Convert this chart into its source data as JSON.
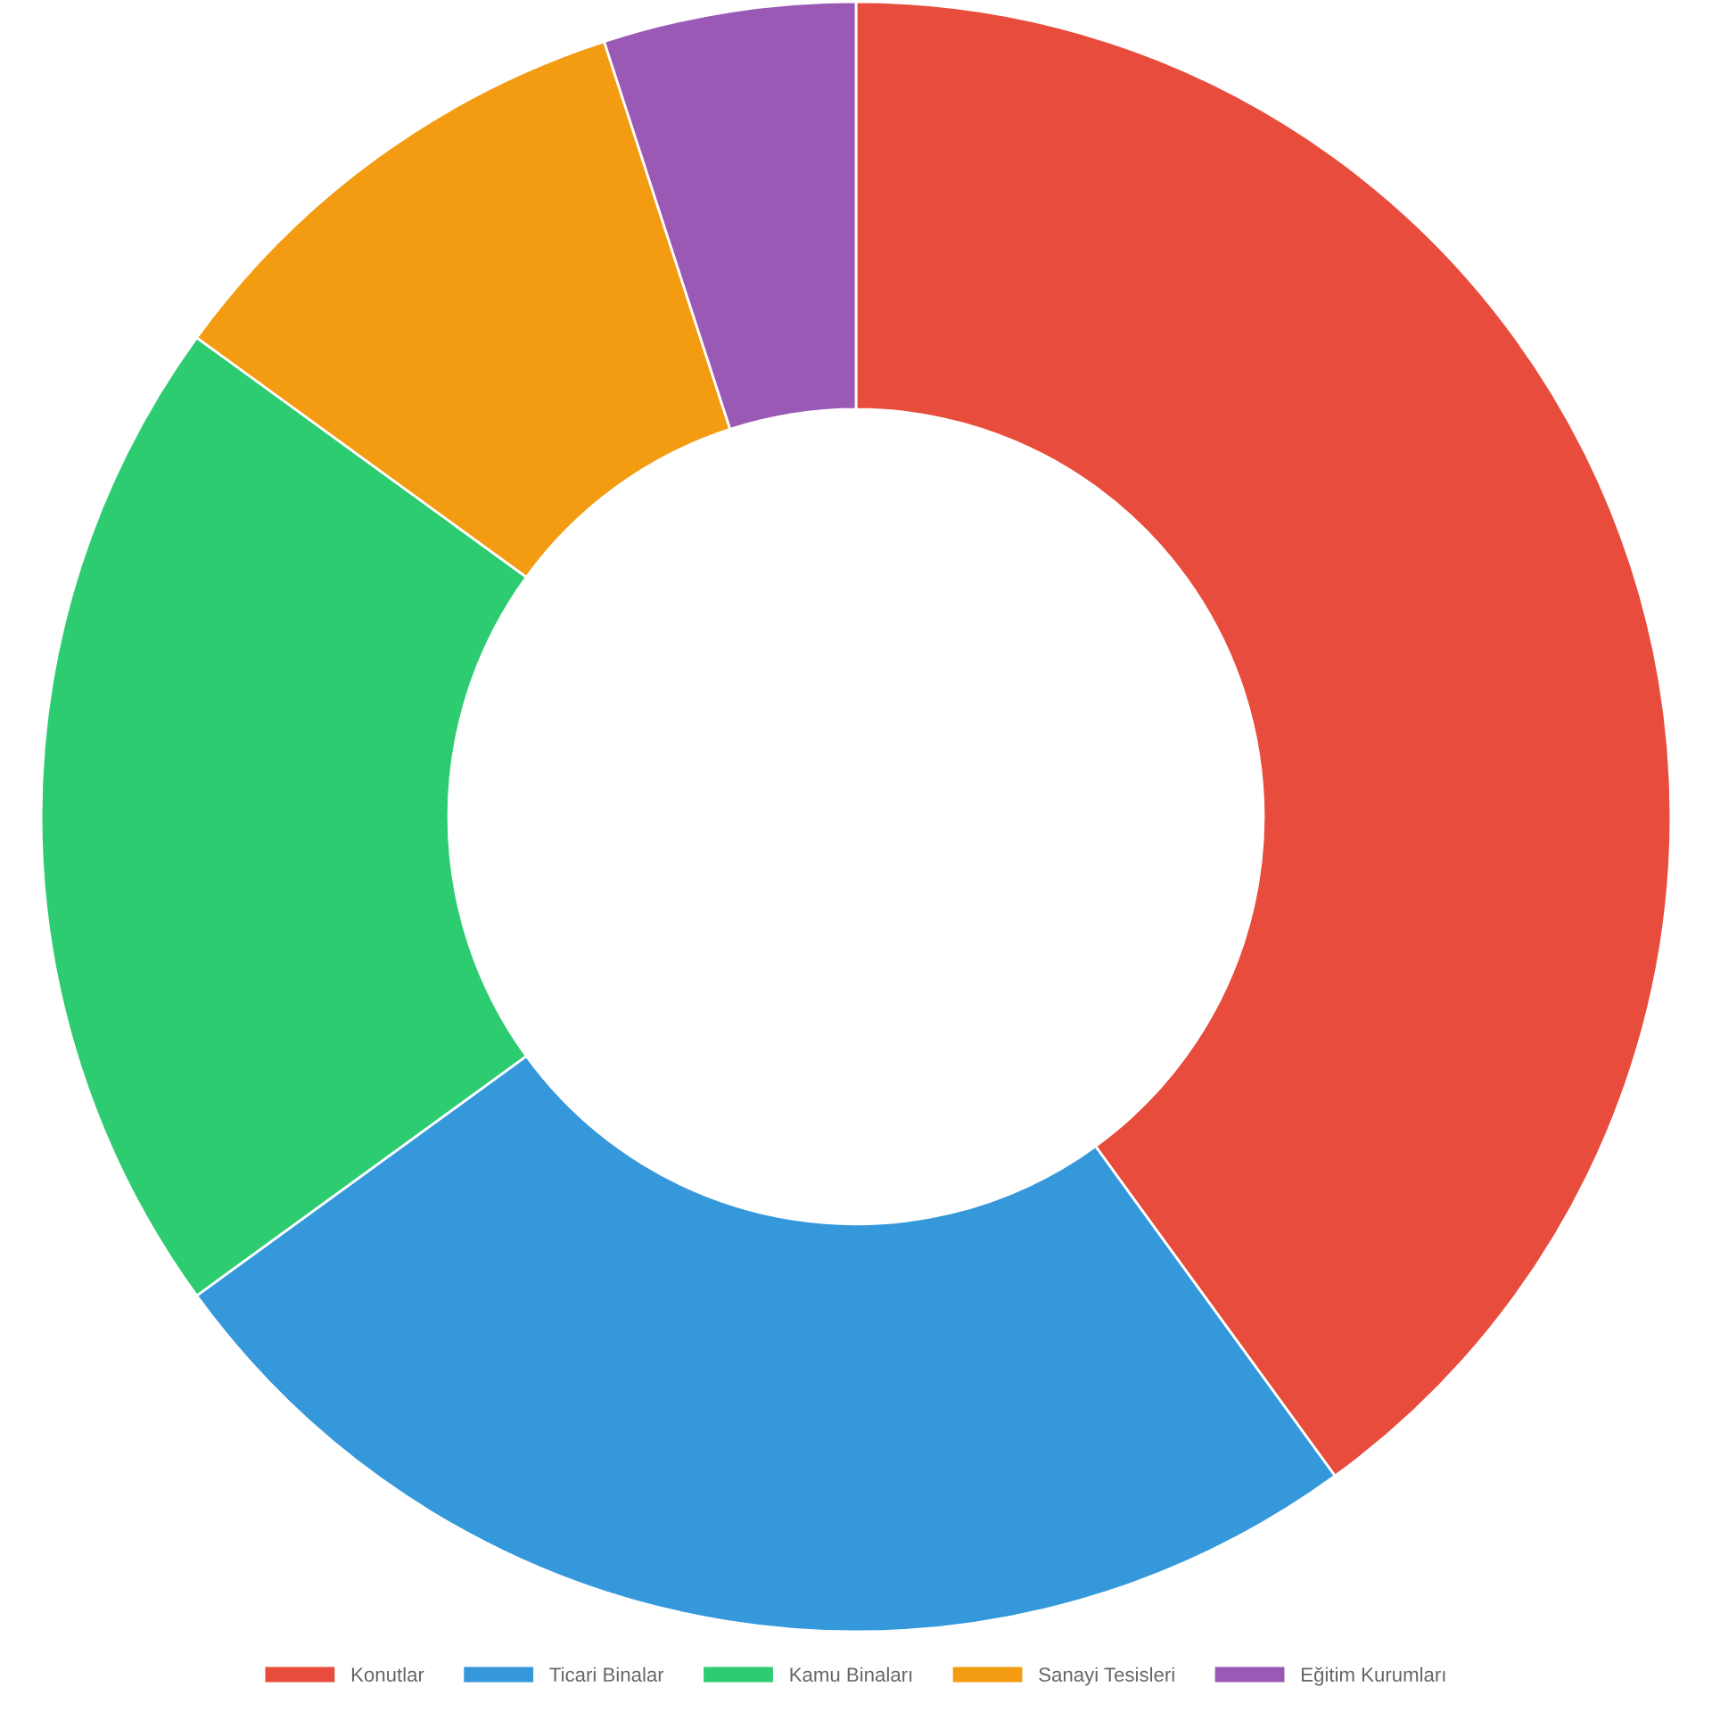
{
  "chart_data": {
    "type": "donut",
    "categories": [
      "Konutlar",
      "Ticari Binalar",
      "Kamu Binaları",
      "Sanayi Tesisleri",
      "Eğitim Kurumları"
    ],
    "values": [
      40,
      25,
      20,
      10,
      5
    ],
    "colors": [
      "#e74c3c",
      "#3498db",
      "#2ecc71",
      "#f39c12",
      "#9b59b6"
    ],
    "legend": "bottom"
  }
}
